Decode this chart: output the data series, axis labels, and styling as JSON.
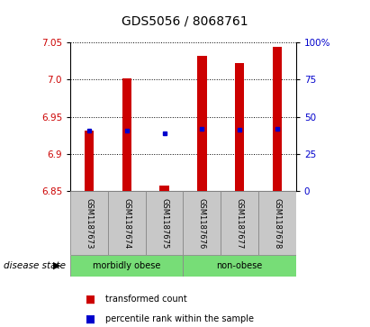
{
  "title": "GDS5056 / 8068761",
  "samples": [
    "GSM1187673",
    "GSM1187674",
    "GSM1187675",
    "GSM1187676",
    "GSM1187677",
    "GSM1187678"
  ],
  "bar_bottoms": [
    6.85,
    6.85,
    6.85,
    6.85,
    6.85,
    6.85
  ],
  "bar_tops": [
    6.932,
    7.002,
    6.858,
    7.032,
    7.022,
    7.044
  ],
  "blue_y": [
    6.932,
    6.932,
    6.928,
    6.934,
    6.933,
    6.934
  ],
  "ylim": [
    6.85,
    7.05
  ],
  "yticks_left": [
    6.85,
    6.9,
    6.95,
    7.0,
    7.05
  ],
  "yticks_right_labels": [
    "0",
    "25",
    "50",
    "75",
    "100%"
  ],
  "yticks_right_vals": [
    6.85,
    6.9,
    6.95,
    7.0,
    7.05
  ],
  "groups": [
    {
      "label": "morbidly obese",
      "color": "#77dd77"
    },
    {
      "label": "non-obese",
      "color": "#77dd77"
    }
  ],
  "bar_color": "#cc0000",
  "blue_color": "#0000cc",
  "bar_width": 0.25,
  "grid_color": "black",
  "label_red": "transformed count",
  "label_blue": "percentile rank within the sample",
  "disease_state_label": "disease state",
  "left_label_color": "#cc0000",
  "right_label_color": "#0000cc",
  "grey_box_color": "#c8c8c8"
}
